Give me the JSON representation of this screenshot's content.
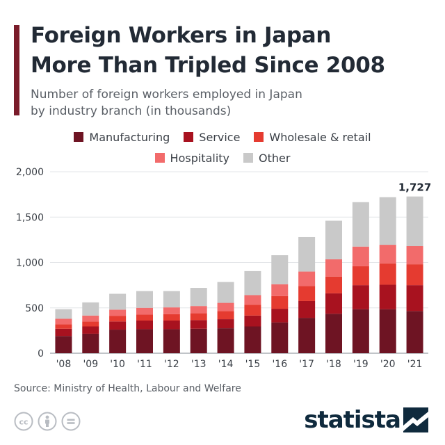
{
  "header": {
    "title_line1": "Foreign Workers in Japan",
    "title_line2": "More Than Tripled Since 2008",
    "subtitle_line1": "Number of foreign workers employed in Japan",
    "subtitle_line2": "by industry branch (in thousands)"
  },
  "footer": {
    "source": "Source: Ministry of Health, Labour and Welfare",
    "logo": "statista",
    "license_icons": [
      "cc-icon",
      "by-icon",
      "nd-icon"
    ]
  },
  "colors": {
    "accent": "#7a1c2a",
    "manufacturing": "#6e1423",
    "service": "#a8121f",
    "wholesale": "#e53b30",
    "hospitality": "#f26b6b",
    "other": "#c9c9c9"
  },
  "chart_data": {
    "type": "bar",
    "stacked": true,
    "categories": [
      "'08",
      "'09",
      "'10",
      "'11",
      "'12",
      "'13",
      "'14",
      "'15",
      "'16",
      "'17",
      "'18",
      "'19",
      "'20",
      "'21"
    ],
    "series": [
      {
        "name": "Manufacturing",
        "values": [
          190,
          215,
          260,
          265,
          265,
          270,
          275,
          295,
          340,
          390,
          435,
          485,
          485,
          465
        ]
      },
      {
        "name": "Service",
        "values": [
          80,
          80,
          90,
          95,
          95,
          95,
          100,
          120,
          150,
          185,
          225,
          265,
          270,
          285
        ]
      },
      {
        "name": "Wholesale & retail",
        "values": [
          50,
          55,
          60,
          65,
          70,
          75,
          90,
          120,
          140,
          165,
          185,
          210,
          235,
          230
        ]
      },
      {
        "name": "Hospitality",
        "values": [
          60,
          65,
          70,
          75,
          75,
          80,
          90,
          105,
          130,
          160,
          190,
          215,
          205,
          200
        ]
      },
      {
        "name": "Other",
        "values": [
          105,
          145,
          175,
          185,
          180,
          200,
          230,
          265,
          320,
          380,
          425,
          490,
          525,
          547
        ]
      }
    ],
    "total_label": "1,727",
    "y_ticks": [
      "0",
      "500",
      "1,000",
      "1,500",
      "2,000"
    ],
    "ylim": [
      0,
      2000
    ],
    "grid": true,
    "legend": "top"
  }
}
